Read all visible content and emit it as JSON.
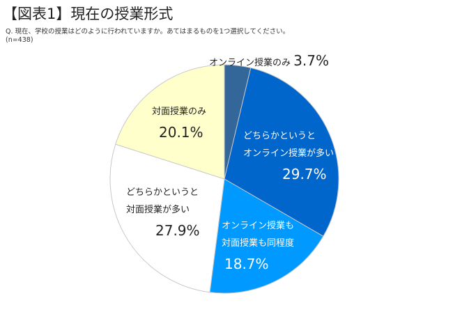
{
  "title": "【図表1】現在の授業形式",
  "question": "Q. 現在、学校の授業はどのように行われていますか。あてはまるものを1つ選択してください。",
  "sample": "(n=438)",
  "chart_data": {
    "type": "pie",
    "title": "【図表1】現在の授業形式",
    "slices": [
      {
        "label_lines": [
          "オンライン授業のみ"
        ],
        "value": 3.7,
        "display": "3.7%",
        "color": "#336699"
      },
      {
        "label_lines": [
          "どちらかというと",
          "オンライン授業が多い"
        ],
        "value": 29.7,
        "display": "29.7%",
        "color": "#0066CC"
      },
      {
        "label_lines": [
          "オンライン授業も",
          "対面授業も同程度"
        ],
        "value": 18.7,
        "display": "18.7%",
        "color": "#0099FF"
      },
      {
        "label_lines": [
          "どちらかというと",
          "対面授業が多い"
        ],
        "value": 27.9,
        "display": "27.9%",
        "color": "#FFFFFF"
      },
      {
        "label_lines": [
          "対面授業のみ"
        ],
        "value": 20.1,
        "display": "20.1%",
        "color": "#FFFFCC"
      }
    ],
    "start": "12 o'clock, clockwise"
  }
}
